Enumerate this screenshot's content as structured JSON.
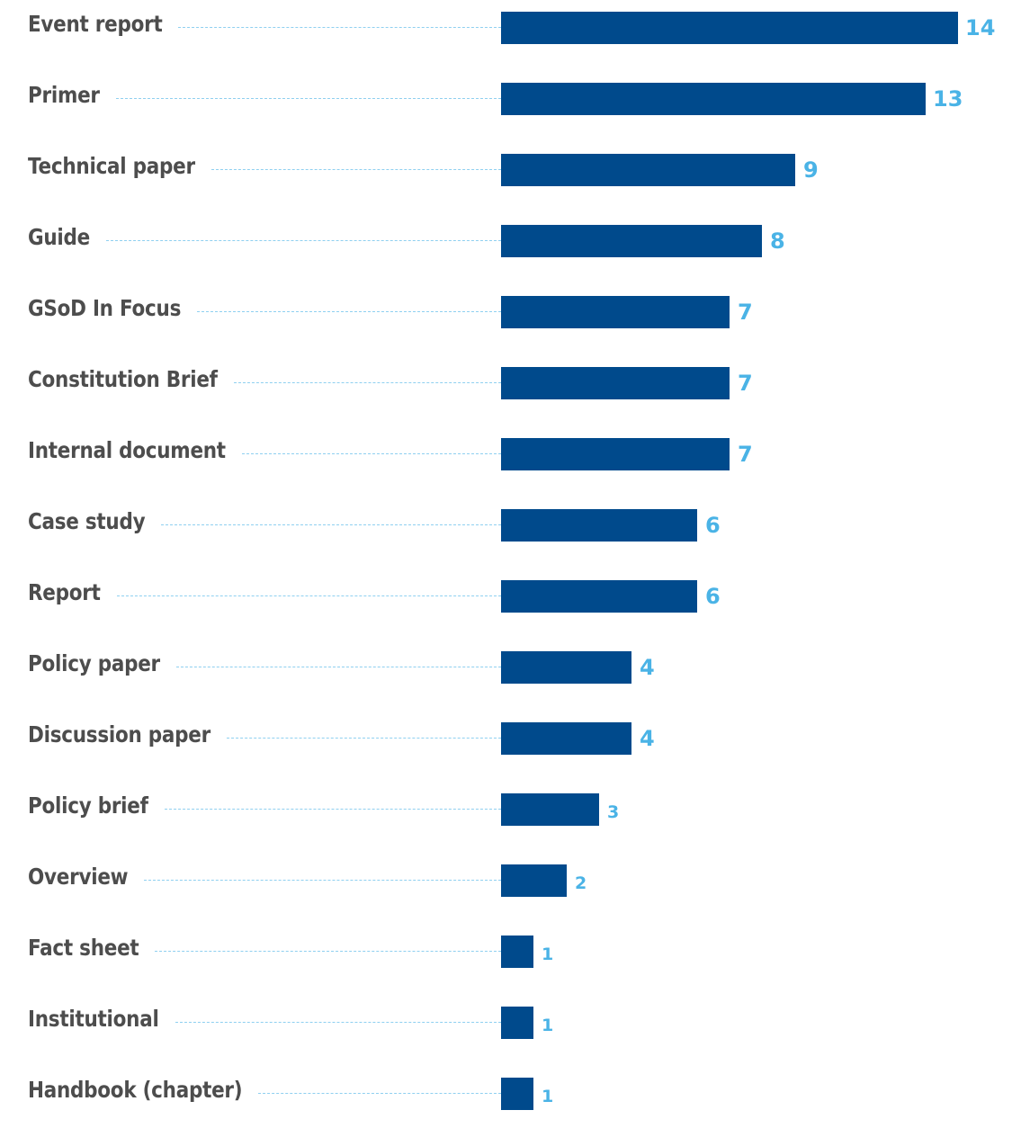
{
  "chart_data": {
    "type": "bar",
    "orientation": "horizontal",
    "categories": [
      "Event report",
      "Primer",
      "Technical paper",
      "Guide",
      "GSoD In Focus",
      "Constitution Brief",
      "Internal document",
      "Case study",
      "Report",
      "Policy paper",
      "Discussion paper",
      "Policy brief",
      "Overview",
      "Fact sheet",
      "Institutional",
      "Handbook (chapter)"
    ],
    "values": [
      14,
      13,
      9,
      8,
      7,
      7,
      7,
      6,
      6,
      4,
      4,
      3,
      2,
      1,
      1,
      1
    ],
    "title": "",
    "xlabel": "",
    "ylabel": "",
    "xlim": [
      0,
      14
    ],
    "grid": false,
    "legend": "none",
    "colors": {
      "bar": "#004a8c",
      "value_label": "#4ab3e6",
      "category_label": "#4d4d4d",
      "leader_line": "#8fd0f0"
    }
  }
}
